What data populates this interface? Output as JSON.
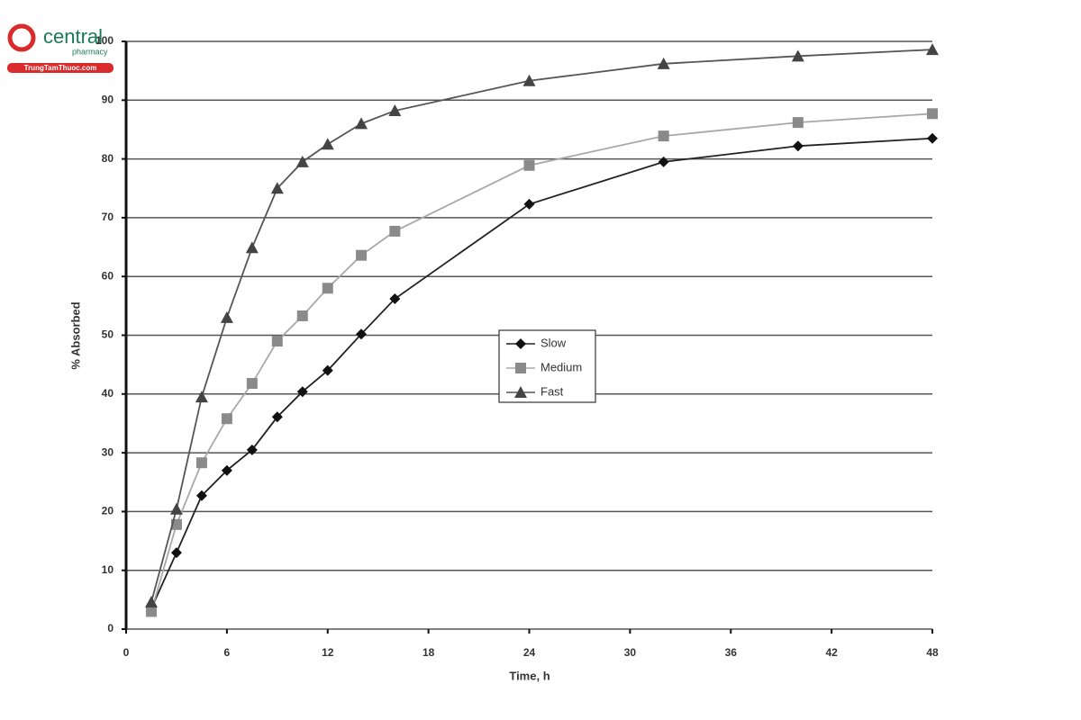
{
  "chart_data": {
    "type": "line",
    "x_label": "Time, h",
    "y_label": "% Absorbed",
    "x": [
      1.5,
      3,
      4.5,
      6,
      7.5,
      9,
      10.5,
      12,
      14,
      16,
      24,
      32,
      40,
      48
    ],
    "series": [
      {
        "name": "Slow",
        "color": "#111111",
        "line_color": "#222222",
        "marker": "diamond",
        "values": [
          3.5,
          13,
          22.7,
          27,
          30.5,
          36.1,
          40.4,
          44,
          50.2,
          56.2,
          72.3,
          79.5,
          82.2,
          83.5
        ]
      },
      {
        "name": "Medium",
        "color": "#8a8a8a",
        "line_color": "#a8a8a8",
        "marker": "square",
        "values": [
          3,
          17.8,
          28.3,
          35.8,
          41.8,
          49,
          53.3,
          58,
          63.6,
          67.7,
          78.9,
          83.9,
          86.2,
          87.7
        ]
      },
      {
        "name": "Fast",
        "color": "#444444",
        "line_color": "#555555",
        "marker": "triangle",
        "values": [
          4.6,
          20.4,
          39.5,
          53,
          64.9,
          75,
          79.5,
          82.5,
          86,
          88.2,
          93.3,
          96.2,
          97.5,
          98.6
        ]
      }
    ],
    "xlim": [
      0,
      48
    ],
    "xticks": [
      0,
      6,
      12,
      18,
      24,
      30,
      36,
      42,
      48
    ],
    "ylim": [
      0,
      100
    ],
    "yticks": [
      0,
      10,
      20,
      30,
      40,
      50,
      60,
      70,
      80,
      90,
      100
    ],
    "grid": true,
    "legend": "center"
  },
  "watermark": {
    "brand": "central",
    "sub": "pharmacy",
    "site": "TrungTamThuoc.com"
  }
}
